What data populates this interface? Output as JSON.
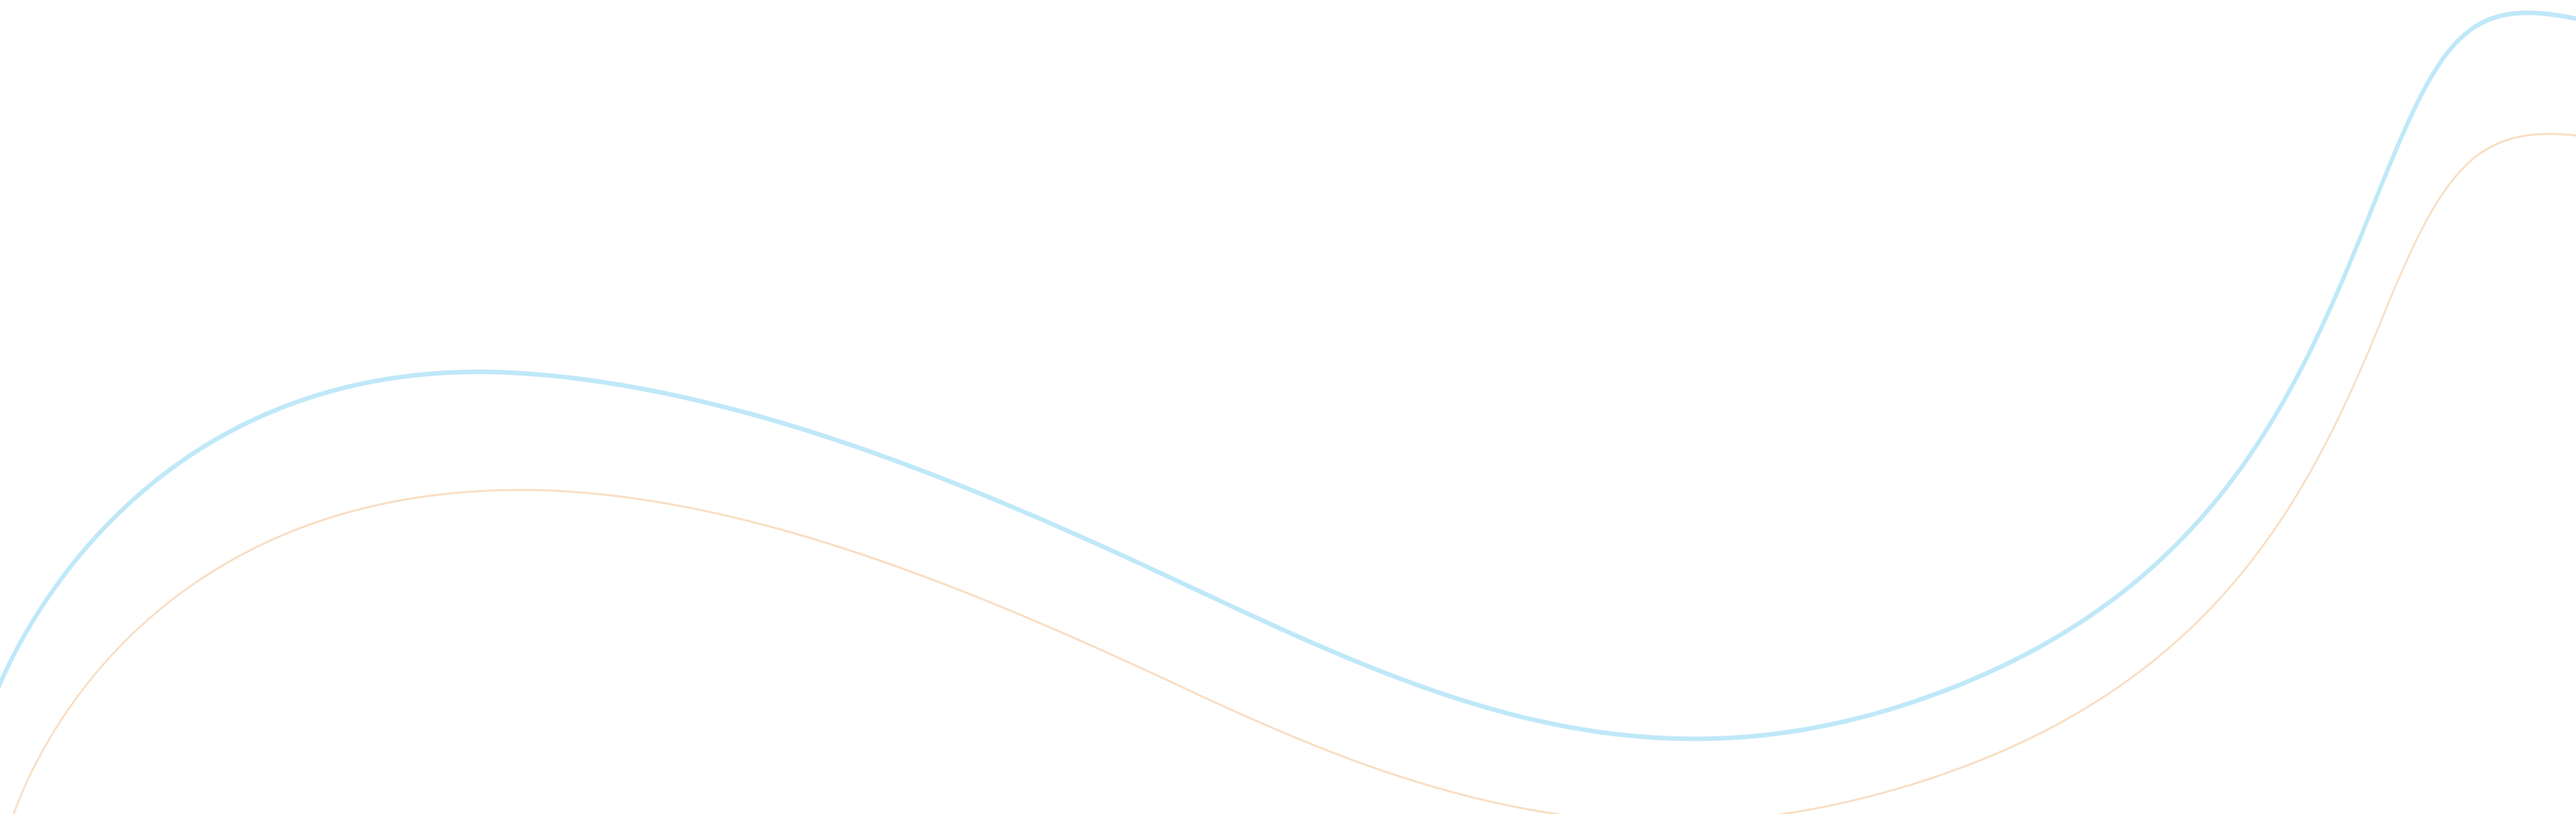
{
  "decoration": {
    "waves": [
      {
        "name": "blue-wave",
        "color": "#bfe8f8"
      },
      {
        "name": "orange-wave",
        "color": "#f9dcc0"
      }
    ]
  }
}
